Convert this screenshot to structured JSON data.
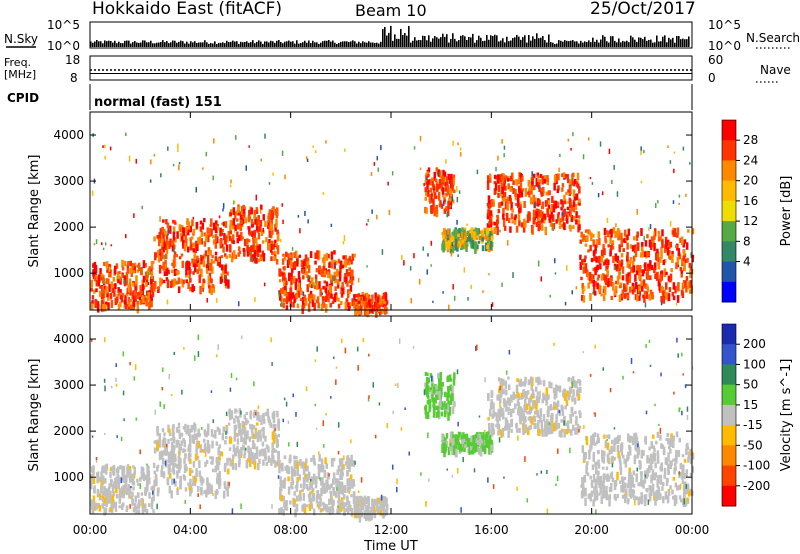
{
  "header": {
    "station": "Hokkaido East (fitACF)",
    "beam": "Beam 10",
    "date": "25/Oct/2017"
  },
  "noise_panel": {
    "left_label": "N.Sky",
    "left_ticks": [
      "10^5",
      "10^0"
    ],
    "right_ticks": [
      "10^5",
      "10^0"
    ],
    "right_label": "N.Search"
  },
  "freq_panel": {
    "left_label_1": "Freq.",
    "left_label_2": "[MHz]",
    "left_ticks": [
      "18",
      "8"
    ],
    "right_ticks": [
      "60",
      "0"
    ],
    "right_label": "Nave"
  },
  "cpid_panel": {
    "label": "CPID",
    "mode": "normal (fast) 151"
  },
  "chart_data": [
    {
      "type": "heatmap",
      "parameter": "Power",
      "ylabel": "Slant Range [km]",
      "xlabel": "",
      "ylim": [
        200,
        4500
      ],
      "yticks": [
        "4000",
        "3000",
        "2000",
        "1000"
      ],
      "colorbar_label": "Power [dB]",
      "colorbar_ticks": [
        "28",
        "24",
        "20",
        "16",
        "12",
        "8",
        "4"
      ],
      "colorbar_colors": [
        "#ff0000",
        "#ff3300",
        "#ff8800",
        "#ffbb00",
        "#eedd00",
        "#55aa44",
        "#338866",
        "#2255aa",
        "#0000ff"
      ],
      "regions_utc_hours_km": [
        {
          "t": [
            0.0,
            2.5
          ],
          "range": [
            300,
            1300
          ],
          "level": "strong"
        },
        {
          "t": [
            2.5,
            5.5
          ],
          "range": [
            700,
            2200
          ],
          "level": "strong"
        },
        {
          "t": [
            5.5,
            7.5
          ],
          "range": [
            1300,
            2500
          ],
          "level": "strong"
        },
        {
          "t": [
            7.5,
            10.5
          ],
          "range": [
            300,
            1500
          ],
          "level": "strong"
        },
        {
          "t": [
            10.5,
            11.8
          ],
          "range": [
            200,
            600
          ],
          "level": "strong"
        },
        {
          "t": [
            13.3,
            14.5
          ],
          "range": [
            2400,
            3300
          ],
          "level": "strong"
        },
        {
          "t": [
            15.8,
            19.5
          ],
          "range": [
            2000,
            3200
          ],
          "level": "strong"
        },
        {
          "t": [
            19.5,
            24.0
          ],
          "range": [
            500,
            2000
          ],
          "level": "strong"
        },
        {
          "t": [
            14.0,
            16.0
          ],
          "range": [
            1600,
            2000
          ],
          "level": "medium"
        }
      ]
    },
    {
      "type": "heatmap",
      "parameter": "Velocity",
      "ylabel": "Slant Range [km]",
      "xlabel": "Time UT",
      "ylim": [
        200,
        4500
      ],
      "yticks": [
        "4000",
        "3000",
        "2000",
        "1000"
      ],
      "xticks": [
        "00:00",
        "04:00",
        "08:00",
        "12:00",
        "16:00",
        "20:00",
        "00:00"
      ],
      "colorbar_label": "Velocity [m s^-1]",
      "colorbar_ticks": [
        "200",
        "100",
        "50",
        "15",
        "-15",
        "-50",
        "-100",
        "-200"
      ],
      "colorbar_colors": [
        "#1a2bb0",
        "#3355cc",
        "#2e8b57",
        "#55cc33",
        "#c0c0c0",
        "#ffbb00",
        "#ff8800",
        "#ff4400",
        "#ff0000"
      ]
    }
  ]
}
